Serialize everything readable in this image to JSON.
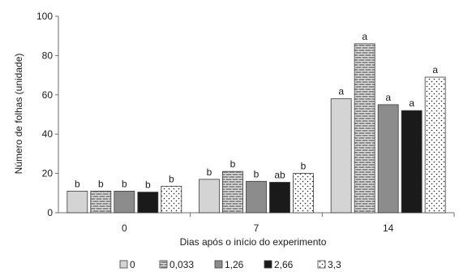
{
  "chart_data": {
    "type": "bar",
    "title": "",
    "xlabel": "Dias após o início do experimento",
    "ylabel": "Número de folhas  (unidade)",
    "categories": [
      "0",
      "7",
      "14"
    ],
    "ylim": [
      0,
      100
    ],
    "yticks": [
      "0",
      "20",
      "40",
      "60",
      "80",
      "100"
    ],
    "grid": false,
    "legend_position": "bottom",
    "series": [
      {
        "name": "0",
        "values": [
          11,
          17,
          58
        ],
        "letters": [
          "b",
          "b",
          "a"
        ],
        "color": "#d4d4d4",
        "pattern": "solid"
      },
      {
        "name": "0,033",
        "values": [
          11,
          21,
          86
        ],
        "letters": [
          "b",
          "b",
          "a"
        ],
        "color": "#7a7a7a",
        "pattern": "brick"
      },
      {
        "name": "1,26",
        "values": [
          11,
          16,
          55
        ],
        "letters": [
          "b",
          "b",
          "a"
        ],
        "color": "#8c8c8c",
        "pattern": "solid"
      },
      {
        "name": "2,66",
        "values": [
          10.5,
          15.5,
          52
        ],
        "letters": [
          "b",
          "ab",
          "a"
        ],
        "color": "#1a1a1a",
        "pattern": "solid"
      },
      {
        "name": "3,3",
        "values": [
          13.5,
          20,
          69
        ],
        "letters": [
          "b",
          "b",
          "a"
        ],
        "color": "#ffffff",
        "pattern": "dots"
      }
    ]
  }
}
